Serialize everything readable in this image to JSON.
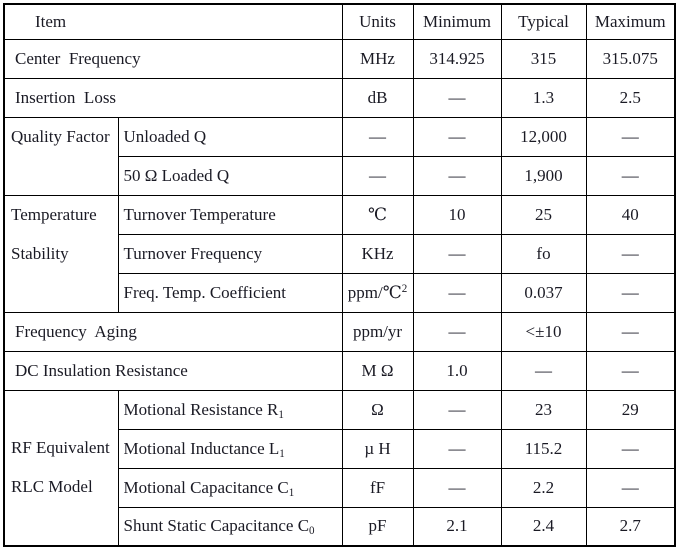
{
  "colors": {
    "border": "#000000",
    "text": "#1a1a24",
    "background": "#ffffff"
  },
  "table": {
    "headers": [
      "Item",
      "Units",
      "Minimum",
      "Typical",
      "Maximum"
    ],
    "rows": [
      {
        "type": "plain",
        "item": [
          {
            "t": "Center  Frequency"
          }
        ],
        "units": [
          {
            "t": "MHz"
          }
        ],
        "min": "314.925",
        "typ": "315",
        "max": "315.075"
      },
      {
        "type": "plain",
        "item": [
          {
            "t": "Insertion  Loss"
          }
        ],
        "units": [
          {
            "t": "dB"
          }
        ],
        "min": "—",
        "typ": "1.3",
        "max": "2.5"
      },
      {
        "type": "grouped",
        "group": {
          "lines": [
            "Quality Factor"
          ],
          "rowspan": 2,
          "valign": "top"
        },
        "item": [
          {
            "t": "Unloaded Q"
          }
        ],
        "units": [
          {
            "t": "—"
          }
        ],
        "min": "—",
        "typ": "12,000",
        "max": "—"
      },
      {
        "type": "sub",
        "item": [
          {
            "t": "50 Ω Loaded Q"
          }
        ],
        "units": [
          {
            "t": "—"
          }
        ],
        "min": "—",
        "typ": "1,900",
        "max": "—"
      },
      {
        "type": "grouped",
        "group": {
          "lines": [
            "Temperature",
            "Stability"
          ],
          "rowspan": 3,
          "valign": "top"
        },
        "item": [
          {
            "t": "Turnover Temperature"
          }
        ],
        "units": [
          {
            "t": "℃"
          }
        ],
        "min": "10",
        "typ": "25",
        "max": "40"
      },
      {
        "type": "sub",
        "item": [
          {
            "t": "Turnover Frequency"
          }
        ],
        "units": [
          {
            "t": "KHz"
          }
        ],
        "min": "—",
        "typ": "fo",
        "max": "—"
      },
      {
        "type": "sub",
        "item": [
          {
            "t": "Freq. Temp. Coefficient"
          }
        ],
        "units": [
          {
            "t": "ppm/℃"
          },
          {
            "t": "2",
            "s": "sup"
          }
        ],
        "min": "—",
        "typ": "0.037",
        "max": "—"
      },
      {
        "type": "plain",
        "item": [
          {
            "t": "Frequency  Aging"
          }
        ],
        "units": [
          {
            "t": "ppm/yr"
          }
        ],
        "min": "—",
        "typ": "<±10",
        "max": "—"
      },
      {
        "type": "plain",
        "item": [
          {
            "t": "DC Insulation Resistance"
          }
        ],
        "units": [
          {
            "t": "M Ω"
          }
        ],
        "min": "1.0",
        "typ": "—",
        "max": "—"
      },
      {
        "type": "grouped",
        "group": {
          "lines": [
            "RF Equivalent",
            "RLC Model"
          ],
          "rowspan": 4,
          "valign": "middle"
        },
        "item": [
          {
            "t": "Motional Resistance R"
          },
          {
            "t": "1",
            "s": "sub"
          }
        ],
        "units": [
          {
            "t": "Ω"
          }
        ],
        "min": "—",
        "typ": "23",
        "max": "29"
      },
      {
        "type": "sub",
        "item": [
          {
            "t": "Motional Inductance L"
          },
          {
            "t": "1",
            "s": "sub"
          }
        ],
        "units": [
          {
            "t": "µ H"
          }
        ],
        "min": "—",
        "typ": "115.2",
        "max": "—"
      },
      {
        "type": "sub",
        "item": [
          {
            "t": "Motional Capacitance C"
          },
          {
            "t": "1",
            "s": "sub"
          }
        ],
        "units": [
          {
            "t": "fF"
          }
        ],
        "min": "—",
        "typ": "2.2",
        "max": "—"
      },
      {
        "type": "sub",
        "item": [
          {
            "t": "Shunt Static Capacitance C"
          },
          {
            "t": "0",
            "s": "sub"
          }
        ],
        "units": [
          {
            "t": "pF"
          }
        ],
        "min": "2.1",
        "typ": "2.4",
        "max": "2.7"
      }
    ]
  }
}
